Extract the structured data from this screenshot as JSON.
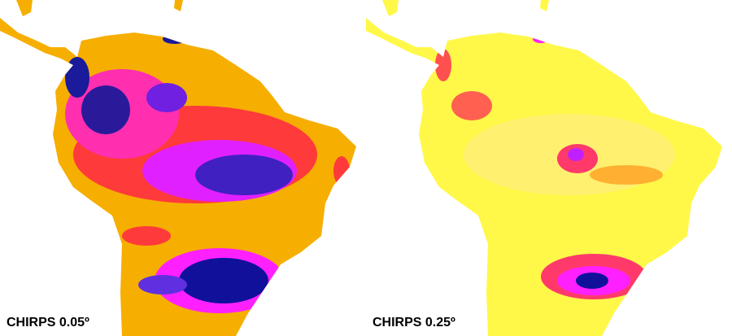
{
  "panels": [
    {
      "label": "CHIRPS 0.05º"
    },
    {
      "label": "CHIRPS 0.25º"
    }
  ]
}
